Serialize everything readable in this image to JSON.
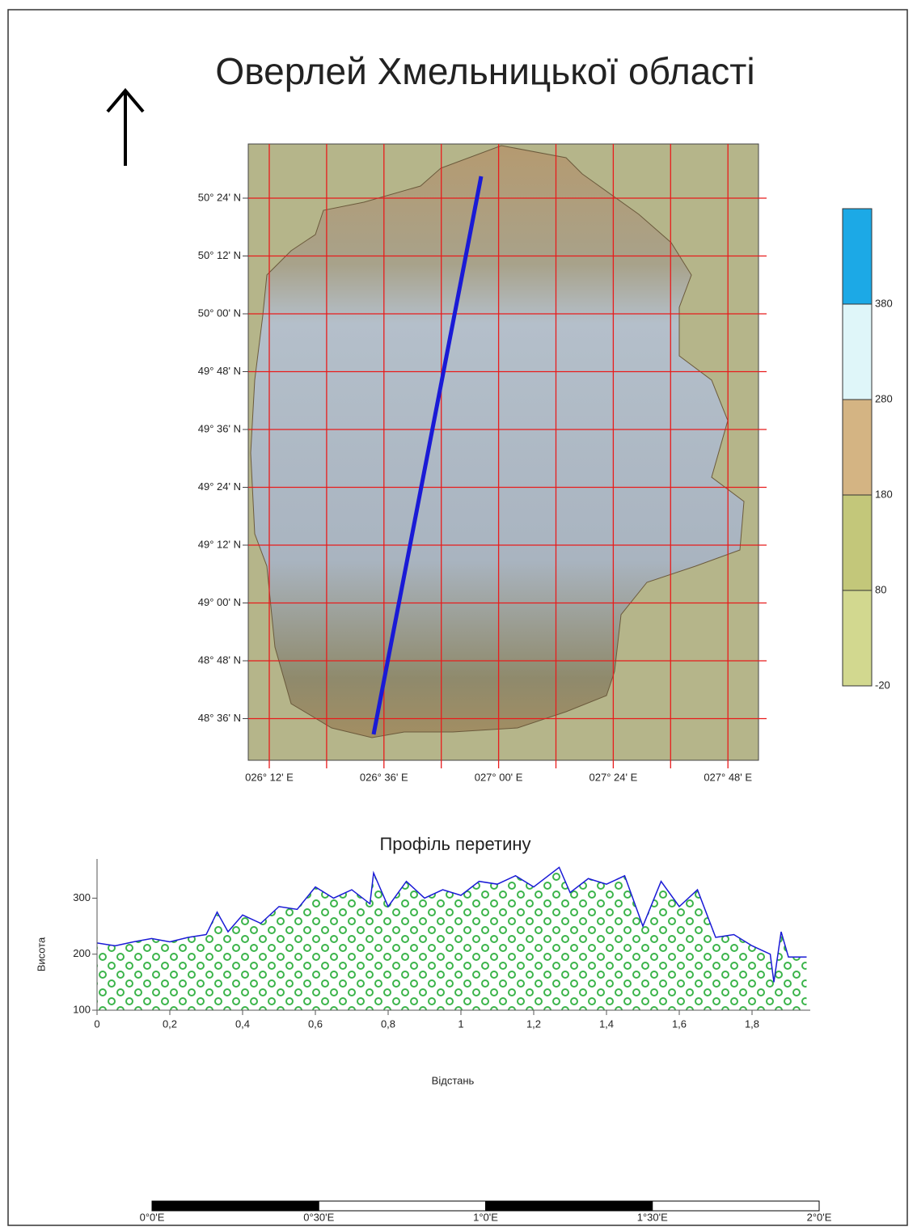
{
  "title": "Оверлей Хмельницької області",
  "map": {
    "lat_labels": [
      "50° 24' N",
      "50° 12' N",
      "50° 00' N",
      "49° 48' N",
      "49° 36' N",
      "49° 24' N",
      "49° 12' N",
      "49° 00' N",
      "48° 48' N",
      "48° 36' N"
    ],
    "lon_labels": [
      "026° 12' E",
      "026° 36' E",
      "027° 00' E",
      "027° 24' E",
      "027° 48' E"
    ]
  },
  "legend": {
    "labels": [
      380,
      280,
      180,
      80,
      -20
    ],
    "colors": [
      "#1ca9e6",
      "#dff6f9",
      "#d4b483",
      "#c3c77a",
      "#d2d88f"
    ]
  },
  "chart_data": {
    "type": "line",
    "title": "Профіль перетину",
    "x_label": "Відстань",
    "y_label": "Висота",
    "x": [
      0,
      0.05,
      0.1,
      0.15,
      0.2,
      0.25,
      0.3,
      0.33,
      0.36,
      0.4,
      0.45,
      0.5,
      0.55,
      0.6,
      0.65,
      0.7,
      0.75,
      0.76,
      0.8,
      0.85,
      0.9,
      0.95,
      1.0,
      1.05,
      1.1,
      1.15,
      1.2,
      1.25,
      1.27,
      1.3,
      1.35,
      1.4,
      1.45,
      1.5,
      1.55,
      1.6,
      1.65,
      1.7,
      1.75,
      1.8,
      1.85,
      1.86,
      1.88,
      1.9,
      1.95
    ],
    "series": [
      {
        "color": "#1a1ad6",
        "values": [
          220,
          215,
          222,
          228,
          222,
          230,
          235,
          275,
          240,
          270,
          255,
          285,
          280,
          320,
          300,
          315,
          290,
          345,
          285,
          330,
          300,
          315,
          305,
          330,
          325,
          340,
          320,
          345,
          355,
          310,
          335,
          325,
          340,
          250,
          330,
          285,
          315,
          230,
          235,
          215,
          200,
          150,
          240,
          195,
          195
        ]
      }
    ],
    "fill_color": "#3cb44b",
    "xlim": [
      0,
      1.96
    ],
    "xticks": [
      0,
      {
        "value": 0.2,
        "label": "0,2"
      },
      {
        "value": 0.4,
        "label": "0,4"
      },
      {
        "value": 0.6,
        "label": "0,6"
      },
      {
        "value": 0.8,
        "label": "0,8"
      },
      1,
      {
        "value": 1.2,
        "label": "1,2"
      },
      {
        "value": 1.4,
        "label": "1,4"
      },
      {
        "value": 1.6,
        "label": "1,6"
      },
      {
        "value": 1.8,
        "label": "1,8"
      }
    ],
    "ylim": [
      100,
      370
    ],
    "yticks": [
      100,
      200,
      300
    ]
  },
  "scale_bar": {
    "labels": [
      "0°0'E",
      "0°30'E",
      "1°0'E",
      "1°30'E",
      "2°0'E"
    ]
  }
}
